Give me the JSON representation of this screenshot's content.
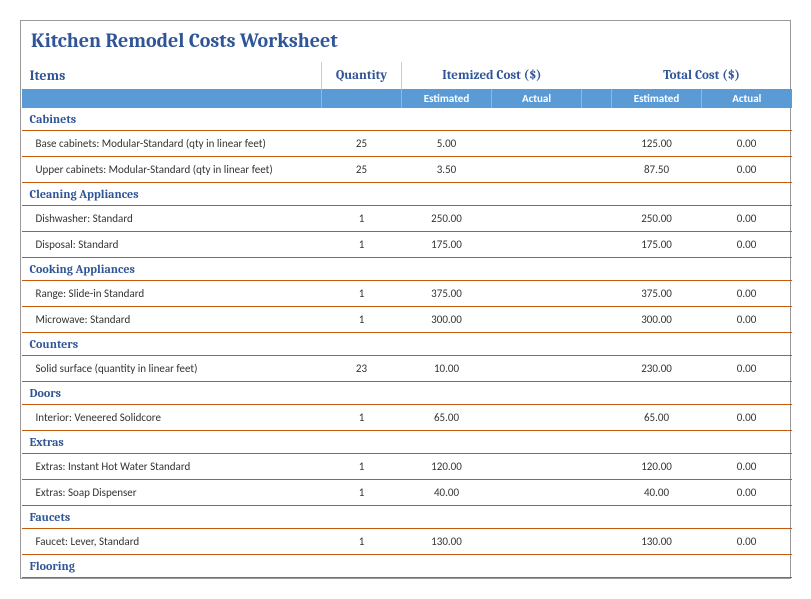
{
  "title": "Kitchen Remodel Costs Worksheet",
  "colors": {
    "title": "#2f5597",
    "header_text": "#2f5597",
    "subheader_bg": "#5b9bd5",
    "subheader_text": "#ffffff",
    "category_text": "#2f5597",
    "rule": "#c55a11",
    "cell_text": "#333333"
  },
  "headers": {
    "items": "Items",
    "quantity": "Quantity",
    "itemized_cost": "Itemized Cost ($)",
    "total_cost": "Total Cost ($)",
    "estimated": "Estimated",
    "actual": "Actual"
  },
  "sections": [
    {
      "name": "Cabinets",
      "rows": [
        {
          "item": "Base cabinets: Modular-Standard (qty in linear feet)",
          "qty": "25",
          "est": "5.00",
          "act": "",
          "test": "125.00",
          "tact": "0.00"
        },
        {
          "item": "Upper cabinets: Modular-Standard (qty in linear feet)",
          "qty": "25",
          "est": "3.50",
          "act": "",
          "test": "87.50",
          "tact": "0.00"
        }
      ]
    },
    {
      "name": "Cleaning Appliances",
      "rows": [
        {
          "item": "Dishwasher: Standard",
          "qty": "1",
          "est": "250.00",
          "act": "",
          "test": "250.00",
          "tact": "0.00"
        },
        {
          "item": "Disposal: Standard",
          "qty": "1",
          "est": "175.00",
          "act": "",
          "test": "175.00",
          "tact": "0.00"
        }
      ]
    },
    {
      "name": "Cooking Appliances",
      "rows": [
        {
          "item": "Range: Slide-in Standard",
          "qty": "1",
          "est": "375.00",
          "act": "",
          "test": "375.00",
          "tact": "0.00"
        },
        {
          "item": "Microwave: Standard",
          "qty": "1",
          "est": "300.00",
          "act": "",
          "test": "300.00",
          "tact": "0.00"
        }
      ]
    },
    {
      "name": "Counters",
      "rows": [
        {
          "item": "Solid surface (quantity in linear feet)",
          "qty": "23",
          "est": "10.00",
          "act": "",
          "test": "230.00",
          "tact": "0.00"
        }
      ]
    },
    {
      "name": "Doors",
      "rows": [
        {
          "item": "Interior: Veneered Solidcore",
          "qty": "1",
          "est": "65.00",
          "act": "",
          "test": "65.00",
          "tact": "0.00"
        }
      ]
    },
    {
      "name": "Extras",
      "rows": [
        {
          "item": "Extras: Instant Hot Water Standard",
          "qty": "1",
          "est": "120.00",
          "act": "",
          "test": "120.00",
          "tact": "0.00"
        },
        {
          "item": "Extras: Soap Dispenser",
          "qty": "1",
          "est": "40.00",
          "act": "",
          "test": "40.00",
          "tact": "0.00"
        }
      ]
    },
    {
      "name": "Faucets",
      "rows": [
        {
          "item": "Faucet: Lever, Standard",
          "qty": "1",
          "est": "130.00",
          "act": "",
          "test": "130.00",
          "tact": "0.00"
        }
      ]
    },
    {
      "name": "Flooring",
      "rows": []
    }
  ]
}
